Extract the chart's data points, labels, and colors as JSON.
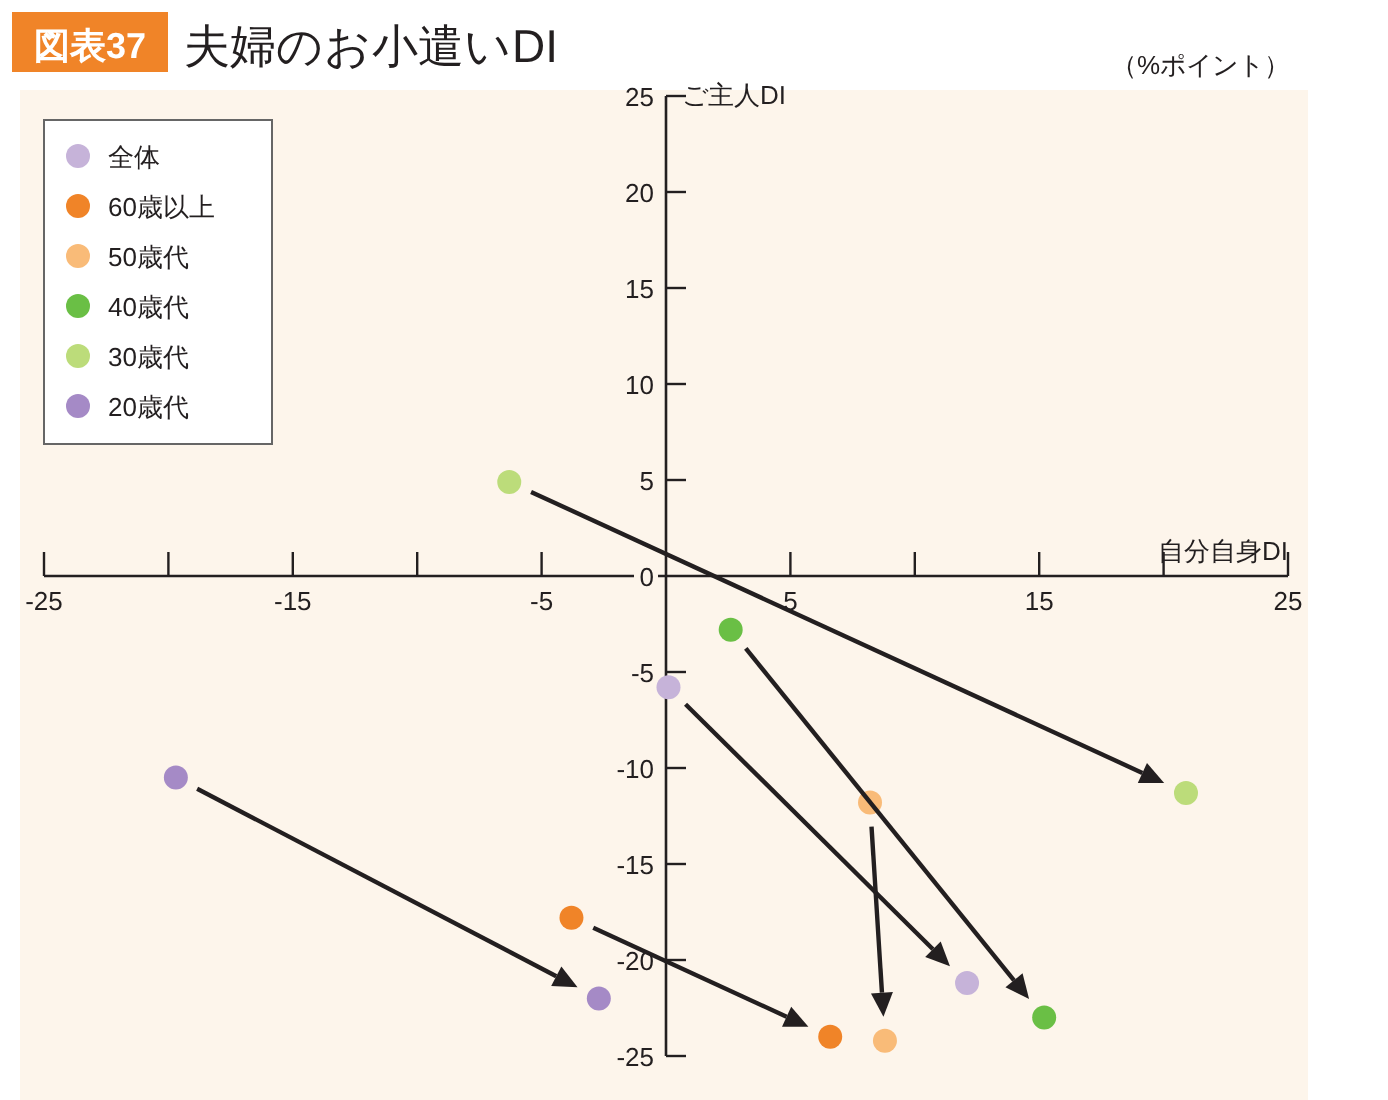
{
  "chart_data": {
    "type": "scatter",
    "title": "図表37 夫婦のお小遣いDI",
    "xlabel": "自分自身DI",
    "ylabel": "ご主人DI",
    "annotations": [
      "（%ポイント）"
    ],
    "xlim": [
      -25,
      25
    ],
    "xticks": [
      -25,
      {
        "value": -20,
        "label": null
      },
      -15,
      {
        "value": -10,
        "label": null
      },
      -5,
      5,
      {
        "value": 10,
        "label": null
      },
      15,
      {
        "value": 20,
        "label": null
      },
      25
    ],
    "ylim": [
      -25,
      25
    ],
    "yticks": [
      -25,
      -20,
      -15,
      -10,
      -5,
      0,
      5,
      10,
      15,
      20,
      25
    ],
    "marker": "circle",
    "legend": "top left",
    "grid": false,
    "series": [
      {
        "name": "全体",
        "color": "#c6b3d9",
        "x": [
          0.1,
          12.1
        ],
        "values": [
          -5.8,
          -21.2
        ]
      },
      {
        "name": "60歳以上",
        "color": "#f08428",
        "x": [
          -3.8,
          6.6
        ],
        "values": [
          -17.8,
          -24
        ]
      },
      {
        "name": "50歳代",
        "color": "#f9bb78",
        "x": [
          8.2,
          8.8
        ],
        "values": [
          -11.8,
          -24.2
        ]
      },
      {
        "name": "40歳代",
        "color": "#6abf45",
        "x": [
          2.6,
          15.2
        ],
        "values": [
          -2.8,
          -23
        ]
      },
      {
        "name": "30歳代",
        "color": "#bcdc7a",
        "x": [
          -6.3,
          20.9
        ],
        "values": [
          4.9,
          -11.3
        ]
      },
      {
        "name": "20歳代",
        "color": "#a58ac6",
        "x": [
          -19.7,
          -2.7
        ],
        "values": [
          -10.5,
          -22
        ]
      }
    ]
  }
}
